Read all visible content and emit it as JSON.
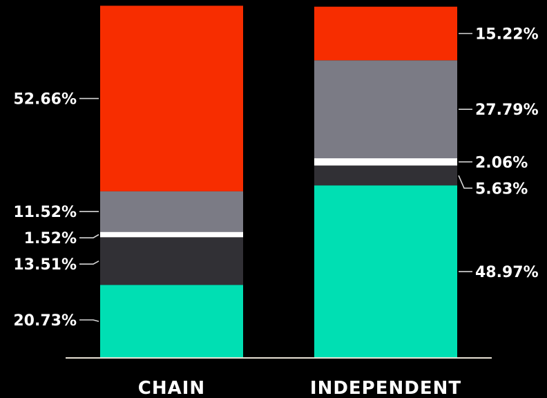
{
  "chart_data": {
    "type": "bar",
    "stacked": true,
    "normalized": true,
    "grid": false,
    "legend": "none",
    "ylim": [
      0,
      100
    ],
    "categories": [
      "CHAIN",
      "INDEPENDENT"
    ],
    "series": [
      {
        "color": "#00dfb3",
        "values": [
          20.73,
          48.97
        ],
        "labels": [
          "20.73%",
          "48.97%"
        ]
      },
      {
        "color": "#313035",
        "values": [
          13.51,
          5.63
        ],
        "labels": [
          "13.51%",
          "5.63%"
        ]
      },
      {
        "color": "#ffffff",
        "values": [
          1.52,
          2.06
        ],
        "labels": [
          "1.52%",
          "2.06%"
        ]
      },
      {
        "color": "#7b7b85",
        "values": [
          11.52,
          27.79
        ],
        "labels": [
          "11.52%",
          "27.79%"
        ]
      },
      {
        "color": "#f72d00",
        "values": [
          52.66,
          15.22
        ],
        "labels": [
          "52.66%",
          "15.22%"
        ]
      }
    ],
    "label_sides": [
      "left",
      "right"
    ],
    "colors": {
      "background": "#000000",
      "axis": "#e8e2d6",
      "text": "#ffffff"
    }
  }
}
